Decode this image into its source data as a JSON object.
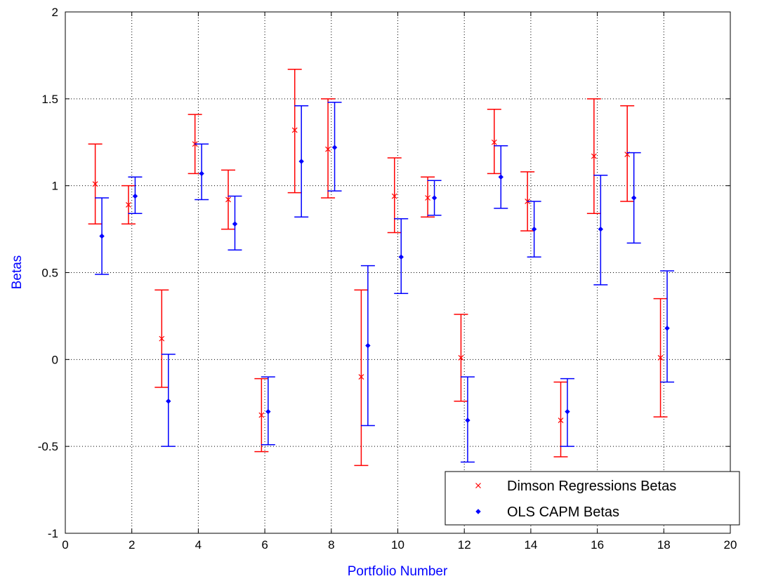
{
  "chart_data": {
    "type": "scatter",
    "xlabel": "Portfolio Number",
    "ylabel": "Betas",
    "xlim": [
      0,
      20
    ],
    "ylim": [
      -1,
      2
    ],
    "xticks": [
      "0",
      "2",
      "4",
      "6",
      "8",
      "10",
      "12",
      "14",
      "16",
      "18",
      "20"
    ],
    "yticks": [
      "-1",
      "-0.5",
      "0",
      "0.5",
      "1",
      "1.5",
      "2"
    ],
    "grid": true,
    "legend_position": "bottom-right",
    "label_color": "#0000ff",
    "series": [
      {
        "name": "Dimson Regressions Betas",
        "marker": "x",
        "color": "#ff0000",
        "x": [
          1,
          2,
          3,
          4,
          5,
          6,
          7,
          8,
          9,
          10,
          11,
          12,
          13,
          14,
          15,
          16,
          17,
          18
        ],
        "y": [
          1.01,
          0.89,
          0.12,
          1.24,
          0.92,
          -0.32,
          1.32,
          1.21,
          -0.1,
          0.94,
          0.93,
          0.01,
          1.25,
          0.91,
          -0.35,
          1.17,
          1.18,
          0.01
        ],
        "lower": [
          0.78,
          0.78,
          -0.16,
          1.07,
          0.75,
          -0.53,
          0.96,
          0.93,
          -0.61,
          0.73,
          0.82,
          -0.24,
          1.07,
          0.74,
          -0.56,
          0.84,
          0.91,
          -0.33
        ],
        "upper": [
          1.24,
          1.0,
          0.4,
          1.41,
          1.09,
          -0.11,
          1.67,
          1.5,
          0.4,
          1.16,
          1.05,
          0.26,
          1.44,
          1.08,
          -0.13,
          1.5,
          1.46,
          0.35
        ]
      },
      {
        "name": "OLS CAPM Betas",
        "marker": "diamond",
        "color": "#0000ff",
        "x": [
          1,
          2,
          3,
          4,
          5,
          6,
          7,
          8,
          9,
          10,
          11,
          12,
          13,
          14,
          15,
          16,
          17,
          18
        ],
        "y": [
          0.71,
          0.94,
          -0.24,
          1.07,
          0.78,
          -0.3,
          1.14,
          1.22,
          0.08,
          0.59,
          0.93,
          -0.35,
          1.05,
          0.75,
          -0.3,
          0.75,
          0.93,
          0.18
        ],
        "lower": [
          0.49,
          0.84,
          -0.5,
          0.92,
          0.63,
          -0.49,
          0.82,
          0.97,
          -0.38,
          0.38,
          0.83,
          -0.59,
          0.87,
          0.59,
          -0.5,
          0.43,
          0.67,
          -0.13
        ],
        "upper": [
          0.93,
          1.05,
          0.03,
          1.24,
          0.94,
          -0.1,
          1.46,
          1.48,
          0.54,
          0.81,
          1.03,
          -0.1,
          1.23,
          0.91,
          -0.11,
          1.06,
          1.19,
          0.51
        ]
      }
    ]
  }
}
